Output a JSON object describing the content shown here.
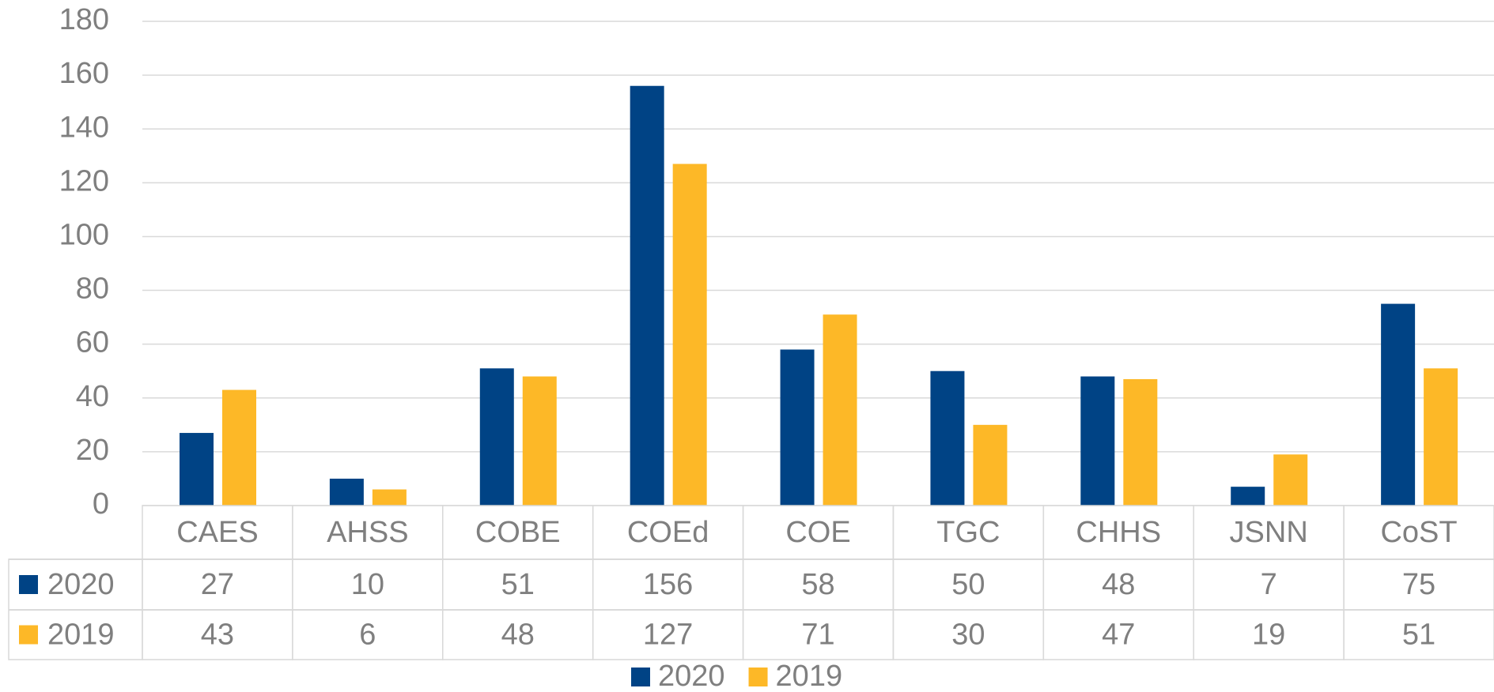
{
  "chart_data": {
    "type": "bar",
    "categories": [
      "CAES",
      "AHSS",
      "COBE",
      "COEd",
      "COE",
      "TGC",
      "CHHS",
      "JSNN",
      "CoST"
    ],
    "series": [
      {
        "name": "2020",
        "color": "#004385",
        "values": [
          27,
          10,
          51,
          156,
          58,
          50,
          48,
          7,
          75
        ]
      },
      {
        "name": "2019",
        "color": "#fdb827",
        "values": [
          43,
          6,
          48,
          127,
          71,
          30,
          47,
          19,
          51
        ]
      }
    ],
    "ylim": [
      0,
      180
    ],
    "yticks": [
      0,
      20,
      40,
      60,
      80,
      100,
      120,
      140,
      160,
      180
    ],
    "grid": true,
    "legend": "bottom",
    "data_table": true
  }
}
